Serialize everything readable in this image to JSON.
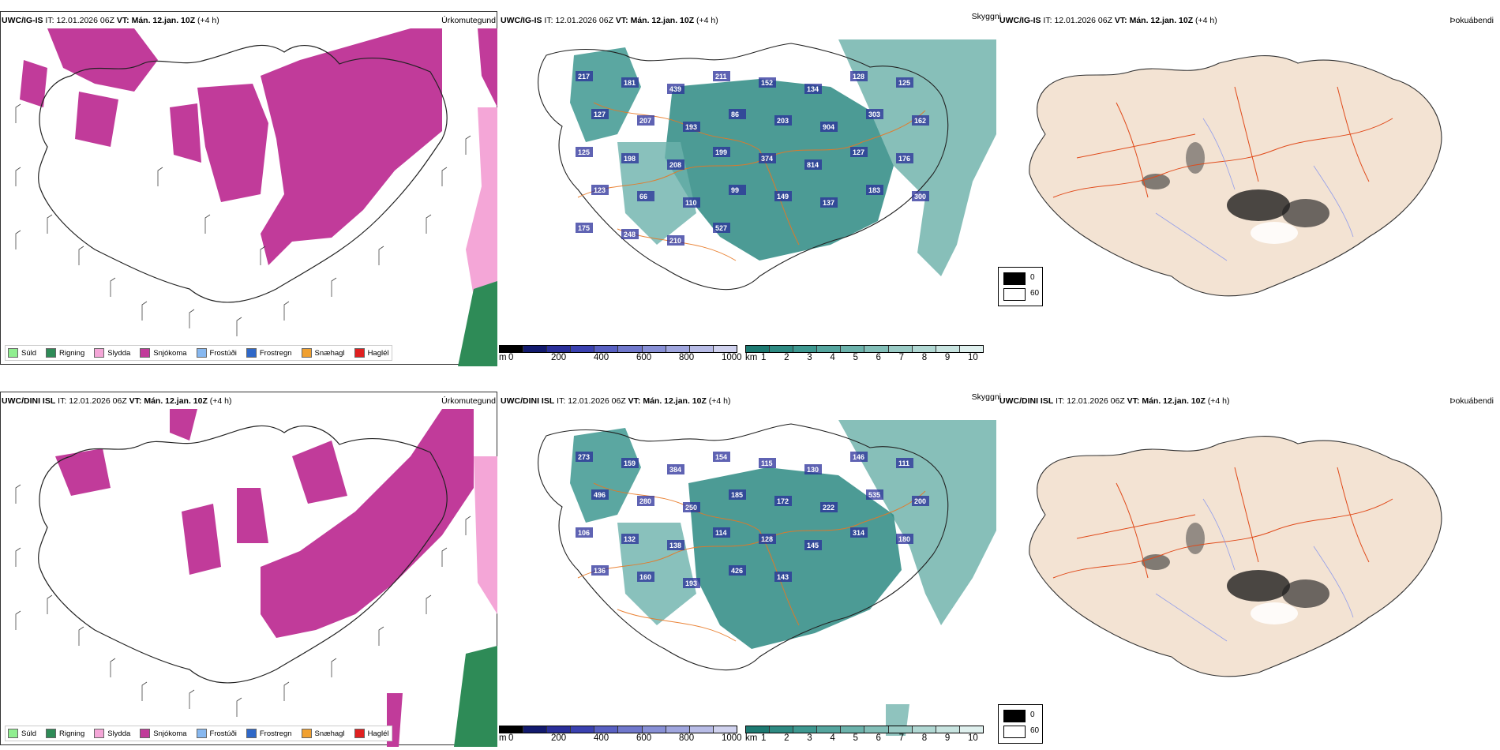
{
  "panels": {
    "row1": {
      "model": "UWC/IG-IS",
      "it_label": "IT:",
      "it_value": "12.01.2026 06Z",
      "vt_label": "VT:",
      "vt_value": "Mán. 12.jan. 10Z",
      "lead": "(+4 h)"
    },
    "row2": {
      "model": "UWC/DINI ISL",
      "it_label": "IT:",
      "it_value": "12.01.2026 06Z",
      "vt_label": "VT:",
      "vt_value": "Mán. 12.jan. 10Z",
      "lead": "(+4 h)"
    }
  },
  "titles": {
    "precip": "Úrkomutegund",
    "visibility": "Skyggni",
    "fog": "Þokuábendi"
  },
  "precip_legend": [
    {
      "label": "Súld",
      "color": "#90ee90"
    },
    {
      "label": "Rigning",
      "color": "#2e8b57"
    },
    {
      "label": "Slydda",
      "color": "#f4a6d7"
    },
    {
      "label": "Snjókoma",
      "color": "#c13b9a"
    },
    {
      "label": "Frostúði",
      "color": "#87b8f0"
    },
    {
      "label": "Frostregn",
      "color": "#2f68c8"
    },
    {
      "label": "Snæhagl",
      "color": "#f0a030"
    },
    {
      "label": "Haglél",
      "color": "#e02020"
    }
  ],
  "ceiling_scale": {
    "unit": "m",
    "ticks": [
      "0",
      "200",
      "400",
      "600",
      "800",
      "1000"
    ],
    "colors": [
      "#000000",
      "#121a6e",
      "#2a2f9a",
      "#3a41b0",
      "#5860c2",
      "#7078cc",
      "#8890d6",
      "#a0a6de",
      "#b8bce6",
      "#d0d2ee"
    ]
  },
  "visibility_scale": {
    "unit": "km",
    "ticks": [
      "1",
      "2",
      "3",
      "4",
      "5",
      "6",
      "7",
      "8",
      "9",
      "10"
    ],
    "colors": [
      "#1d7a72",
      "#2e8a82",
      "#3e9890",
      "#55a59e",
      "#6cb2ab",
      "#83bfb8",
      "#9acbc5",
      "#b1d8d3",
      "#c8e4e0",
      "#dff0ee"
    ]
  },
  "fog_scale": {
    "entries": [
      {
        "label": "0",
        "color": "#000000"
      },
      {
        "label": "60",
        "color": "#ffffff"
      }
    ]
  },
  "ceiling_values_row1": [
    "217",
    "181",
    "439",
    "211",
    "152",
    "134",
    "128",
    "125",
    "127",
    "207",
    "193",
    "86",
    "203",
    "904",
    "303",
    "162",
    "125",
    "198",
    "208",
    "199",
    "374",
    "814",
    "127",
    "176",
    "123",
    "66",
    "110",
    "99",
    "149",
    "137",
    "183",
    "300",
    "175",
    "248",
    "210",
    "527"
  ],
  "ceiling_values_row2": [
    "273",
    "159",
    "384",
    "154",
    "115",
    "130",
    "146",
    "111",
    "496",
    "280",
    "250",
    "185",
    "172",
    "222",
    "535",
    "200",
    "106",
    "132",
    "138",
    "114",
    "128",
    "145",
    "314",
    "180",
    "136",
    "160",
    "193",
    "426",
    "143"
  ]
}
